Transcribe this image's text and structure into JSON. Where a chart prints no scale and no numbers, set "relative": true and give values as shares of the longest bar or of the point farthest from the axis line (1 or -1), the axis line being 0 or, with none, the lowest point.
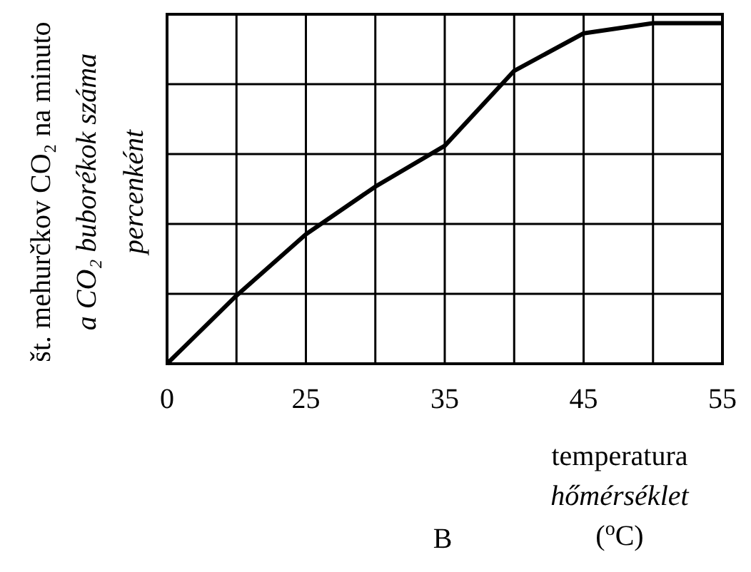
{
  "chart_data": {
    "type": "line",
    "relative": true,
    "categories": [
      "0",
      null,
      "25",
      null,
      "35",
      null,
      "45",
      null,
      "55"
    ],
    "series": [
      {
        "color": "#000000",
        "values": [
          0,
          0.2,
          0.38,
          0.52,
          0.64,
          0.86,
          0.97,
          1.0,
          1.0
        ]
      }
    ],
    "ylabel": "št. mehurčkov CO₂ na minuto\na CO₂ buborékok száma\npercenként",
    "xlabel": "temperatura\nhőmérséklet\n($^{o}$C)",
    "annotations": [
      "B"
    ],
    "grid": true,
    "marker": "none",
    "line_style": "solid"
  }
}
